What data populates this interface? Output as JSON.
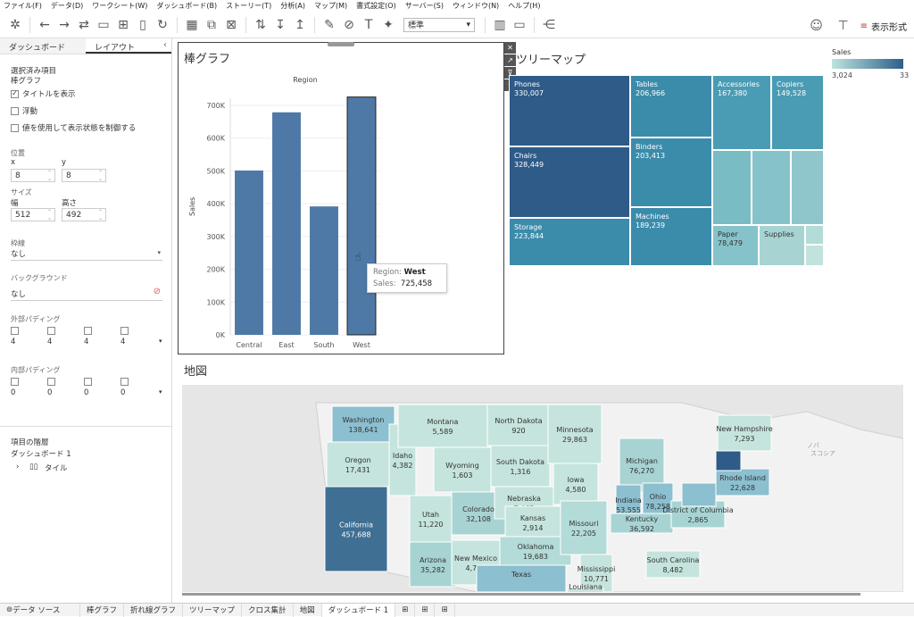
{
  "menu": [
    "ファイル(F)",
    "データ(D)",
    "ワークシート(W)",
    "ダッシュボード(B)",
    "ストーリー(T)",
    "分析(A)",
    "マップ(M)",
    "書式設定(O)",
    "サーバー(S)",
    "ウィンドウ(N)",
    "ヘルプ(H)"
  ],
  "toolbar": {
    "font_select": "標準",
    "show_me": "表示形式"
  },
  "left_panel": {
    "tabs": [
      "ダッシュボード",
      "レイアウト"
    ],
    "selected_item_label": "選択済み項目",
    "selected_item_value": "棒グラフ",
    "show_title": "タイトルを表示",
    "floating": "浮動",
    "control_visibility": "値を使用して表示状態を制御する",
    "position_label": "位置",
    "x_label": "x",
    "y_label": "y",
    "x_value": "8",
    "y_value": "8",
    "size_label": "サイズ",
    "width_label": "幅",
    "height_label": "高さ",
    "width_value": "512",
    "height_value": "492",
    "border_label": "枠線",
    "border_value": "なし",
    "background_label": "バックグラウンド",
    "background_value": "なし",
    "outer_padding_label": "外部パディング",
    "outer_padding": [
      "4",
      "4",
      "4",
      "4"
    ],
    "inner_padding_label": "内部パディング",
    "inner_padding": [
      "0",
      "0",
      "0",
      "0"
    ],
    "hierarchy_label": "項目の階層",
    "hierarchy_root": "ダッシュボード 1",
    "hierarchy_child": "タイル"
  },
  "bar_sheet": {
    "title": "棒グラフ"
  },
  "chart_data": {
    "type": "bar",
    "title": "Region",
    "categories": [
      "Central",
      "East",
      "South",
      "West"
    ],
    "values": [
      501240,
      678781,
      391722,
      725458
    ],
    "ylabel": "Sales",
    "xlabel": "",
    "ylim": [
      0,
      700000
    ],
    "yticks": [
      "0K",
      "100K",
      "200K",
      "300K",
      "400K",
      "500K",
      "600K",
      "700K"
    ],
    "grid": true,
    "highlighted": "West",
    "color": "#4e79a7"
  },
  "tooltip": {
    "k1": "Region:",
    "v1": "West",
    "k2": "Sales:",
    "v2": "725,458"
  },
  "treemap": {
    "title": "ツリーマップ",
    "legend_title": "Sales",
    "legend_min": "3,024",
    "legend_max": "33",
    "cells": [
      {
        "name": "Phones",
        "value": "330,007",
        "color": "#2e5b88"
      },
      {
        "name": "Chairs",
        "value": "328,449",
        "color": "#2e5b88"
      },
      {
        "name": "Storage",
        "value": "223,844",
        "color": "#3b8bab"
      },
      {
        "name": "Tables",
        "value": "206,966",
        "color": "#3b8bab"
      },
      {
        "name": "Binders",
        "value": "203,413",
        "color": "#3b8bab"
      },
      {
        "name": "Machines",
        "value": "189,239",
        "color": "#3b8bab"
      },
      {
        "name": "Accessories",
        "value": "167,380",
        "color": "#4a9cb5"
      },
      {
        "name": "Copiers",
        "value": "149,528",
        "color": "#4a9cb5"
      },
      {
        "name": "Paper",
        "value": "78,479",
        "color": "#86c2c9"
      },
      {
        "name": "Supplies",
        "value": "",
        "color": "#a7d4d3"
      }
    ]
  },
  "map": {
    "title": "地図",
    "ocean_label": "ノバ\nスコシア",
    "states": [
      {
        "name": "Washington",
        "value": "138,641"
      },
      {
        "name": "Oregon",
        "value": "17,431"
      },
      {
        "name": "California",
        "value": "457,688"
      },
      {
        "name": "Idaho",
        "value": "4,382"
      },
      {
        "name": "Montana",
        "value": "5,589"
      },
      {
        "name": "Wyoming",
        "value": "1,603"
      },
      {
        "name": "Utah",
        "value": "11,220"
      },
      {
        "name": "Arizona",
        "value": "35,282"
      },
      {
        "name": "Colorado",
        "value": "32,108"
      },
      {
        "name": "New Mexico",
        "value": "4,784"
      },
      {
        "name": "North Dakota",
        "value": "920"
      },
      {
        "name": "South Dakota",
        "value": "1,316"
      },
      {
        "name": "Nebraska",
        "value": "7,465"
      },
      {
        "name": "Kansas",
        "value": "2,914"
      },
      {
        "name": "Oklahoma",
        "value": "19,683"
      },
      {
        "name": "Texas",
        "value": ""
      },
      {
        "name": "Minnesota",
        "value": "29,863"
      },
      {
        "name": "Iowa",
        "value": "4,580"
      },
      {
        "name": "Missouri",
        "value": "22,205"
      },
      {
        "name": "Mississippi",
        "value": "10,771"
      },
      {
        "name": "Michigan",
        "value": "76,270"
      },
      {
        "name": "Indiana",
        "value": "53,555"
      },
      {
        "name": "Ohio",
        "value": "78,258"
      },
      {
        "name": "Kentucky",
        "value": "36,592"
      },
      {
        "name": "District of Columbia",
        "value": "2,865"
      },
      {
        "name": "South Carolina",
        "value": "8,482"
      },
      {
        "name": "New Hampshire",
        "value": "7,293"
      },
      {
        "name": "Rhode Island",
        "value": "22,628"
      },
      {
        "name": "Louisiana",
        "value": ""
      }
    ]
  },
  "bottom_tabs": [
    "データ ソース",
    "棒グラフ",
    "折れ線グラフ",
    "ツリーマップ",
    "クロス集計",
    "地図",
    "ダッシュボード 1"
  ]
}
